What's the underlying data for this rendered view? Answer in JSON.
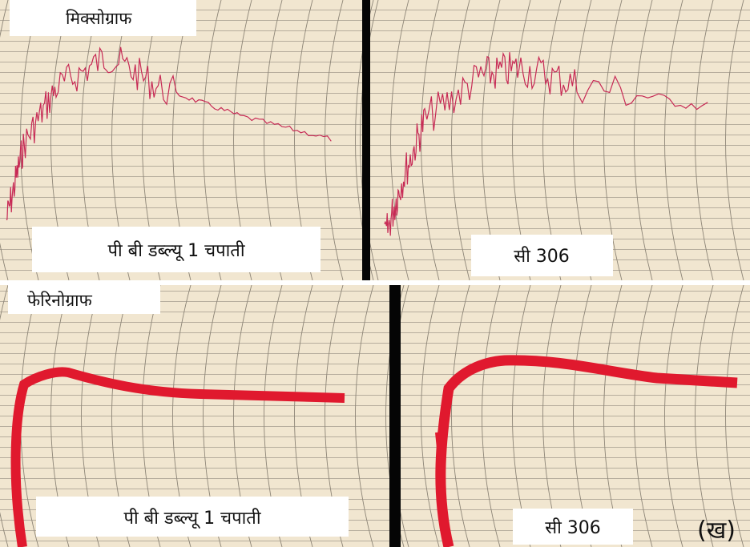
{
  "panels": [
    {
      "title": "मिक्सोग्राफ",
      "label": "पी बी डब्ल्यू 1 चपाती"
    },
    {
      "label": "सी 306"
    },
    {
      "title": "फेरिनोग्राफ",
      "label": "पी बी डब्ल्यू 1 चपाती"
    },
    {
      "label": "सी 306"
    }
  ],
  "figure_label": "(ख)"
}
